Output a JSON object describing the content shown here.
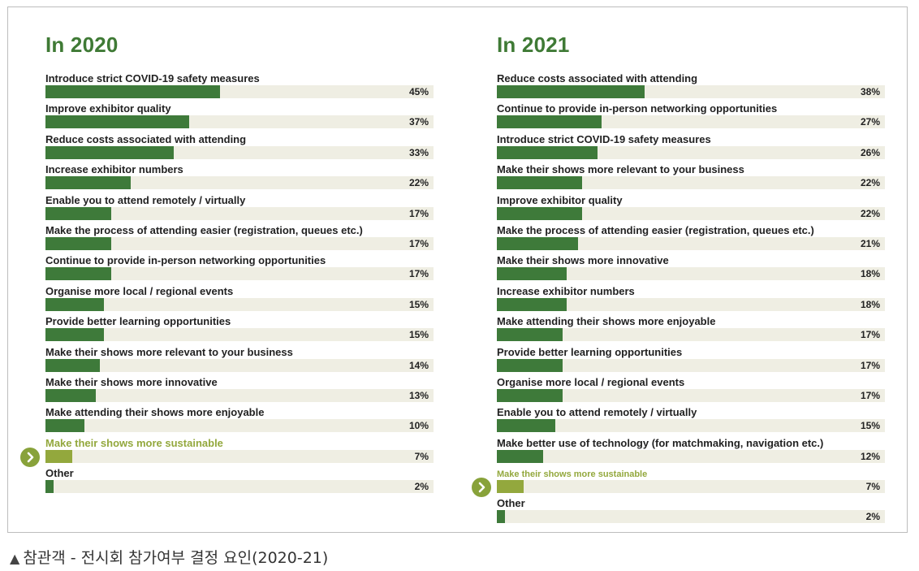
{
  "caption": {
    "icon": "triangle-up-icon",
    "text": "참관객 - 전시회 참가여부 결정 요인(2020-21)"
  },
  "colors": {
    "bar": "#3e7a3a",
    "highlight": "#93a83d",
    "track": "#efeee3",
    "title": "#3f7a35"
  },
  "chart_data": [
    {
      "type": "bar",
      "orientation": "horizontal",
      "title": "In 2020",
      "xlim": [
        0,
        100
      ],
      "categories": [
        "Introduce strict COVID-19 safety measures",
        "Improve exhibitor quality",
        "Reduce costs associated with attending",
        "Increase exhibitor numbers",
        "Enable you to attend remotely / virtually",
        "Make the process of attending easier (registration, queues etc.)",
        "Continue to provide in-person networking opportunities",
        "Organise more local / regional events",
        "Provide better learning opportunities",
        "Make their shows more relevant to your business",
        "Make their shows more innovative",
        "Make attending their shows more enjoyable",
        "Make their shows more sustainable",
        "Other"
      ],
      "values": [
        45,
        37,
        33,
        22,
        17,
        17,
        17,
        15,
        15,
        14,
        13,
        10,
        7,
        2
      ],
      "value_labels": [
        "45%",
        "37%",
        "33%",
        "22%",
        "17%",
        "17%",
        "17%",
        "15%",
        "15%",
        "14%",
        "13%",
        "10%",
        "7%",
        "2%"
      ],
      "highlighted": "Make their shows more sustainable"
    },
    {
      "type": "bar",
      "orientation": "horizontal",
      "title": "In 2021",
      "xlim": [
        0,
        100
      ],
      "categories": [
        "Reduce costs associated with attending",
        "Continue to provide in-person networking opportunities",
        "Introduce strict COVID-19 safety measures",
        "Make their shows more relevant to your business",
        "Improve exhibitor quality",
        "Make the process of attending easier (registration, queues etc.)",
        "Make their shows more innovative",
        "Increase exhibitor numbers",
        "Make attending their shows more enjoyable",
        "Provide better learning opportunities",
        "Organise more local / regional events",
        "Enable you to attend remotely / virtually",
        "Make better use of technology (for matchmaking, navigation etc.)",
        "Make their shows more sustainable",
        "Other"
      ],
      "values": [
        38,
        27,
        26,
        22,
        22,
        21,
        18,
        18,
        17,
        17,
        17,
        15,
        12,
        7,
        2
      ],
      "value_labels": [
        "38%",
        "27%",
        "26%",
        "22%",
        "22%",
        "21%",
        "18%",
        "18%",
        "17%",
        "17%",
        "17%",
        "15%",
        "12%",
        "7%",
        "2%"
      ],
      "highlighted": "Make their shows more sustainable"
    }
  ]
}
